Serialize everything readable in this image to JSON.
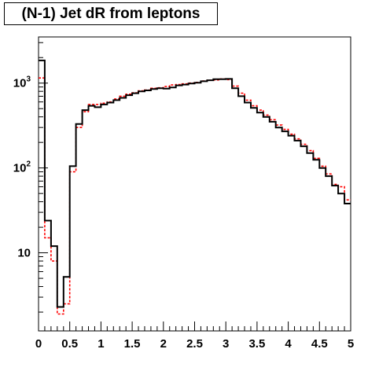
{
  "chart_data": {
    "type": "histogram",
    "title": "(N-1) Jet dR from leptons",
    "xlabel": "",
    "ylabel": "",
    "xlim": [
      0,
      5
    ],
    "ylim": [
      1.2,
      3500
    ],
    "yscale": "log",
    "grid": false,
    "x_ticks": [
      "0",
      "0.5",
      "1",
      "1.5",
      "2",
      "2.5",
      "3",
      "3.5",
      "4",
      "4.5",
      "5"
    ],
    "y_ticks": [
      {
        "base": "10",
        "exp": ""
      },
      {
        "base": "10",
        "exp": "2"
      },
      {
        "base": "10",
        "exp": "3"
      }
    ],
    "bin_edges": [
      0,
      0.1,
      0.2,
      0.3,
      0.4,
      0.5,
      0.6,
      0.7,
      0.8,
      0.9,
      1.0,
      1.1,
      1.2,
      1.3,
      1.4,
      1.5,
      1.6,
      1.7,
      1.8,
      1.9,
      2.0,
      2.1,
      2.2,
      2.3,
      2.4,
      2.5,
      2.6,
      2.7,
      2.8,
      2.9,
      3.0,
      3.1,
      3.2,
      3.3,
      3.4,
      3.5,
      3.6,
      3.7,
      3.8,
      3.9,
      4.0,
      4.1,
      4.2,
      4.3,
      4.4,
      4.5,
      4.6,
      4.7,
      4.8,
      4.9,
      5.0
    ],
    "series": [
      {
        "color": "#000000",
        "style": "solid",
        "values": [
          1850,
          24,
          12,
          2.3,
          5.2,
          105,
          330,
          480,
          540,
          520,
          560,
          590,
          630,
          670,
          720,
          760,
          800,
          820,
          850,
          870,
          860,
          890,
          940,
          960,
          990,
          1010,
          1050,
          1080,
          1110,
          1110,
          1120,
          870,
          700,
          590,
          510,
          450,
          400,
          350,
          300,
          270,
          240,
          210,
          180,
          150,
          125,
          100,
          80,
          62,
          50,
          38
        ]
      },
      {
        "color": "#ff0000",
        "style": "dashed",
        "values": [
          1150,
          15,
          8,
          1.9,
          2.5,
          90,
          300,
          460,
          560,
          560,
          580,
          600,
          650,
          700,
          740,
          770,
          810,
          830,
          870,
          880,
          910,
          950,
          960,
          980,
          1000,
          1020,
          1060,
          1080,
          1090,
          1120,
          1100,
          920,
          760,
          630,
          540,
          480,
          420,
          370,
          320,
          285,
          250,
          220,
          190,
          160,
          130,
          105,
          85,
          64,
          60,
          42
        ]
      }
    ]
  }
}
